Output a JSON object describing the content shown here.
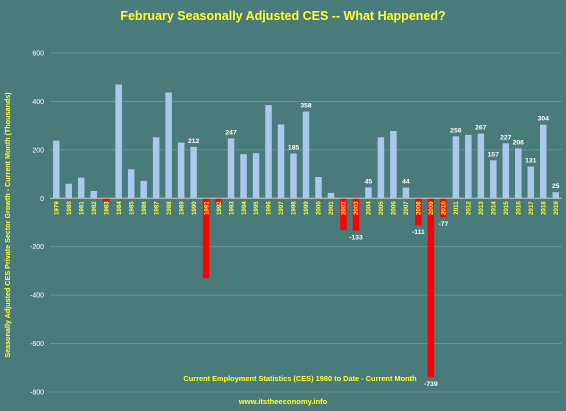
{
  "chart_data": {
    "type": "bar",
    "title": "February  Seasonally Adjusted CES  -- What Happened?",
    "ylabel": "Seasonally Adjusted CES Private Sector Growth - Current Month (Thousands)",
    "annotation": "Current Employment Statistics (CES) 1980 to Date - Current Month",
    "footer": "www.itstheeconomy.info",
    "ylim": [
      -800,
      600
    ],
    "yticks": [
      600,
      400,
      200,
      0,
      -200,
      -400,
      -600,
      -800
    ],
    "grid": true,
    "colors": {
      "positive": "#a9c9ec",
      "negative": "#ff0000"
    },
    "categories": [
      "1979",
      "1980",
      "1981",
      "1982",
      "1983",
      "1984",
      "1985",
      "1986",
      "1987",
      "1988",
      "1989",
      "1990",
      "1991",
      "1992",
      "1993",
      "1994",
      "1995",
      "1996",
      "1997",
      "1998",
      "1999",
      "2000",
      "2001",
      "2002",
      "2003",
      "2004",
      "2005",
      "2006",
      "2007",
      "2008",
      "2009",
      "2010",
      "2011",
      "2012",
      "2013",
      "2014",
      "2015",
      "2016",
      "2017",
      "2018",
      "2019"
    ],
    "values": [
      238,
      60,
      85,
      30,
      -15,
      470,
      120,
      72,
      252,
      437,
      230,
      212,
      -330,
      -25,
      247,
      182,
      186,
      385,
      305,
      185,
      358,
      88,
      22,
      -130,
      -133,
      45,
      252,
      278,
      44,
      -111,
      -739,
      -77,
      256,
      262,
      267,
      157,
      227,
      206,
      131,
      304,
      25
    ],
    "data_labels": [
      {
        "year": "1990",
        "label": "212"
      },
      {
        "year": "1993",
        "label": "247"
      },
      {
        "year": "1998",
        "label": "185"
      },
      {
        "year": "1999",
        "label": "358"
      },
      {
        "year": "2003",
        "label": "-133"
      },
      {
        "year": "2004",
        "label": "45"
      },
      {
        "year": "2007",
        "label": "44"
      },
      {
        "year": "2008",
        "label": "-111"
      },
      {
        "year": "2009",
        "label": "-739"
      },
      {
        "year": "2010",
        "label": "-77"
      },
      {
        "year": "2011",
        "label": "256"
      },
      {
        "year": "2013",
        "label": "267"
      },
      {
        "year": "2014",
        "label": "157"
      },
      {
        "year": "2015",
        "label": "227"
      },
      {
        "year": "2016",
        "label": "206"
      },
      {
        "year": "2017",
        "label": "131"
      },
      {
        "year": "2018",
        "label": "304"
      },
      {
        "year": "2019",
        "label": "25"
      }
    ]
  }
}
